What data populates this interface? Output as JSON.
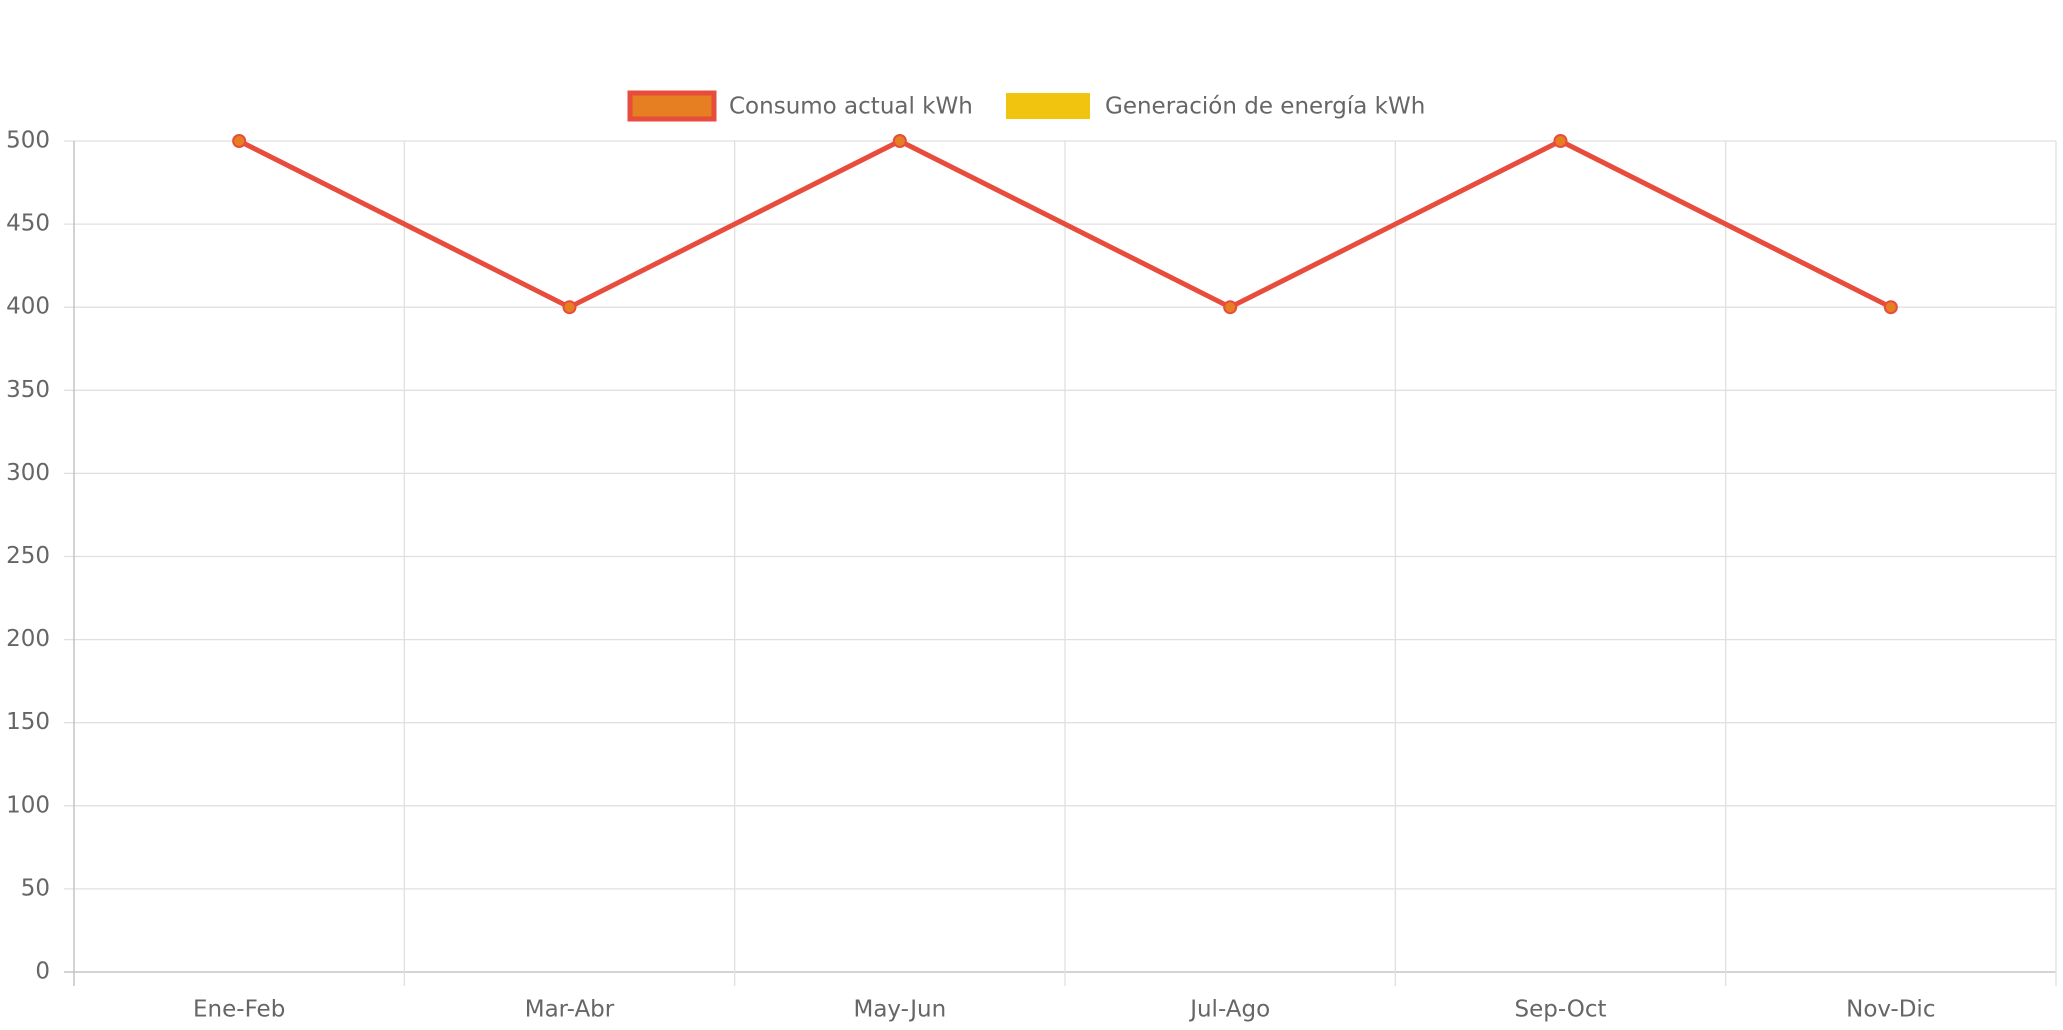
{
  "chart_data": {
    "type": "line",
    "categories": [
      "Ene-Feb",
      "Mar-Abr",
      "May-Jun",
      "Jul-Ago",
      "Sep-Oct",
      "Nov-Dic"
    ],
    "series": [
      {
        "name": "Consumo actual kWh",
        "color": "#e74c3c",
        "point_color": "#e67e22",
        "values": [
          500,
          400,
          500,
          400,
          500,
          400
        ]
      },
      {
        "name": "Generación de energía kWh",
        "color": "#f1c40f",
        "values": [
          null,
          null,
          null,
          null,
          null,
          null
        ]
      }
    ],
    "ylim": [
      0,
      500
    ],
    "yticks": [
      0,
      50,
      100,
      150,
      200,
      250,
      300,
      350,
      400,
      450,
      500
    ],
    "grid": true,
    "legend": "top"
  }
}
